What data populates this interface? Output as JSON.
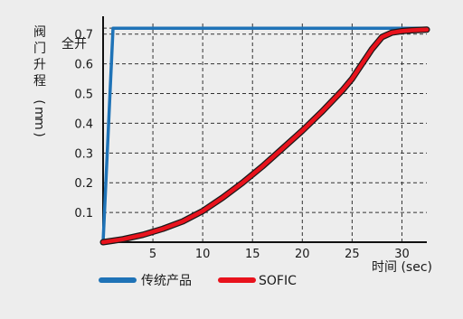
{
  "chart_data": {
    "type": "line",
    "ylabel": "阀门升程 (mm)",
    "xlabel": "时间 (sec)",
    "x_ticks": [
      "5",
      "10",
      "15",
      "20",
      "25",
      "30"
    ],
    "y_ticks": [
      "0.1",
      "0.2",
      "0.3",
      "0.4",
      "0.5",
      "0.6",
      "0.7"
    ],
    "y_full_label": "全开",
    "xlim": [
      0,
      32.5
    ],
    "ylim": [
      0,
      0.76
    ],
    "grid": true,
    "legend_position": "bottom-left",
    "series": [
      {
        "name": "传统产品",
        "color": "#1f73b7",
        "x": [
          0,
          1,
          32.5
        ],
        "y": [
          0,
          0.72,
          0.72
        ]
      },
      {
        "name": "SOFIC",
        "color": "#e8121c",
        "x": [
          0,
          2,
          4,
          6,
          8,
          10,
          12,
          14,
          16,
          18,
          20,
          22,
          24,
          25,
          26,
          26.5,
          27,
          28,
          29,
          30,
          31,
          32.5
        ],
        "y": [
          0,
          0.01,
          0.025,
          0.045,
          0.07,
          0.105,
          0.15,
          0.2,
          0.255,
          0.315,
          0.375,
          0.44,
          0.51,
          0.55,
          0.6,
          0.625,
          0.65,
          0.69,
          0.705,
          0.71,
          0.713,
          0.715
        ]
      }
    ]
  }
}
